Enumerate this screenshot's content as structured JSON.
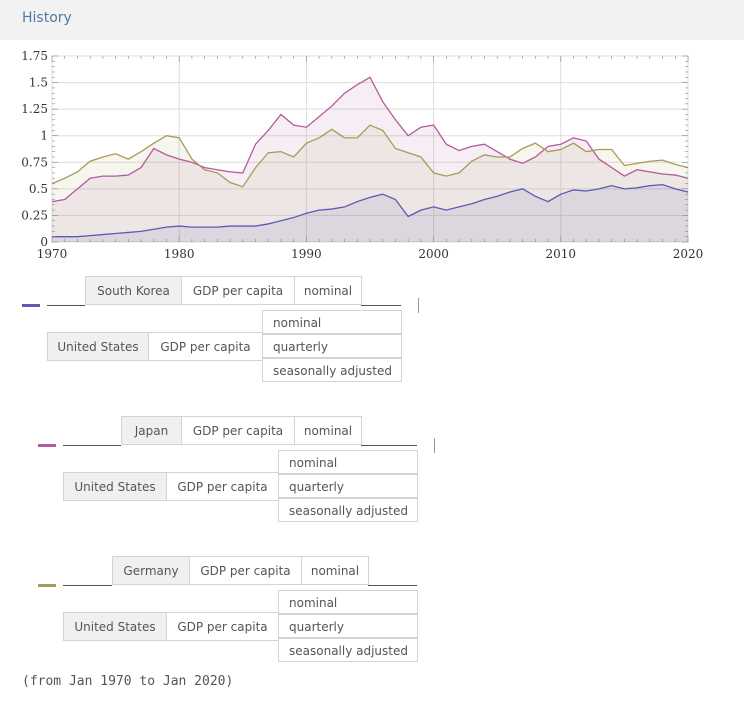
{
  "header": {
    "title": "History"
  },
  "chart_data": {
    "type": "area",
    "x_label": "",
    "y_label": "",
    "xlim": [
      1970,
      2020
    ],
    "ylim": [
      0,
      1.75
    ],
    "x_ticks": [
      "1970",
      "1980",
      "1990",
      "2000",
      "2010",
      "2020"
    ],
    "y_ticks": [
      "0",
      "0.25",
      "0.5",
      "0.75",
      "1",
      "1.25",
      "1.5",
      "1.75"
    ],
    "grid": true,
    "x": [
      1970,
      1971,
      1972,
      1973,
      1974,
      1975,
      1976,
      1977,
      1978,
      1979,
      1980,
      1981,
      1982,
      1983,
      1984,
      1985,
      1986,
      1987,
      1988,
      1989,
      1990,
      1991,
      1992,
      1993,
      1994,
      1995,
      1996,
      1997,
      1998,
      1999,
      2000,
      2001,
      2002,
      2003,
      2004,
      2005,
      2006,
      2007,
      2008,
      2009,
      2010,
      2011,
      2012,
      2013,
      2014,
      2015,
      2016,
      2017,
      2018,
      2019,
      2020
    ],
    "series": [
      {
        "name": "",
        "color": "#5b5bb3",
        "values": [
          0.05,
          0.05,
          0.05,
          0.06,
          0.07,
          0.08,
          0.09,
          0.1,
          0.12,
          0.14,
          0.15,
          0.14,
          0.14,
          0.14,
          0.15,
          0.15,
          0.15,
          0.17,
          0.2,
          0.23,
          0.27,
          0.3,
          0.31,
          0.33,
          0.38,
          0.42,
          0.45,
          0.4,
          0.24,
          0.3,
          0.33,
          0.3,
          0.33,
          0.36,
          0.4,
          0.43,
          0.47,
          0.5,
          0.43,
          0.38,
          0.45,
          0.49,
          0.48,
          0.5,
          0.53,
          0.5,
          0.51,
          0.53,
          0.54,
          0.5,
          0.47
        ]
      },
      {
        "name": "",
        "color": "#b35b9c",
        "values": [
          0.38,
          0.4,
          0.5,
          0.6,
          0.62,
          0.62,
          0.63,
          0.7,
          0.88,
          0.82,
          0.78,
          0.75,
          0.7,
          0.68,
          0.66,
          0.65,
          0.92,
          1.05,
          1.2,
          1.1,
          1.08,
          1.18,
          1.28,
          1.4,
          1.48,
          1.55,
          1.32,
          1.15,
          1.0,
          1.08,
          1.1,
          0.92,
          0.86,
          0.9,
          0.92,
          0.85,
          0.78,
          0.74,
          0.8,
          0.9,
          0.92,
          0.98,
          0.95,
          0.78,
          0.7,
          0.62,
          0.68,
          0.66,
          0.64,
          0.63,
          0.6
        ]
      },
      {
        "name": "",
        "color": "#a89a5a",
        "values": [
          0.55,
          0.6,
          0.66,
          0.76,
          0.8,
          0.83,
          0.78,
          0.85,
          0.93,
          1.0,
          0.98,
          0.78,
          0.68,
          0.65,
          0.56,
          0.52,
          0.7,
          0.84,
          0.85,
          0.8,
          0.93,
          0.98,
          1.06,
          0.98,
          0.98,
          1.1,
          1.05,
          0.88,
          0.84,
          0.8,
          0.65,
          0.62,
          0.65,
          0.76,
          0.82,
          0.8,
          0.8,
          0.88,
          0.93,
          0.85,
          0.87,
          0.93,
          0.85,
          0.87,
          0.87,
          0.72,
          0.74,
          0.76,
          0.77,
          0.73,
          0.7
        ]
      }
    ]
  },
  "legend_entries": [
    {
      "swatch_color": "#5b5bb3",
      "country": "South Korea",
      "measure": "GDP per capita",
      "basis": "nominal",
      "ref_country": "United States",
      "ref_measure": "GDP per capita",
      "ref_options": [
        "nominal",
        "quarterly",
        "seasonally adjusted"
      ]
    },
    {
      "swatch_color": "#b35b9c",
      "country": "Japan",
      "measure": "GDP per capita",
      "basis": "nominal",
      "ref_country": "United States",
      "ref_measure": "GDP per capita",
      "ref_options": [
        "nominal",
        "quarterly",
        "seasonally adjusted"
      ]
    },
    {
      "swatch_color": "#a89a5a",
      "country": "Germany",
      "measure": "GDP per capita",
      "basis": "nominal",
      "ref_country": "United States",
      "ref_measure": "GDP per capita",
      "ref_options": [
        "nominal",
        "quarterly",
        "seasonally adjusted"
      ]
    }
  ],
  "footnote": "(from Jan 1970 to Jan 2020)"
}
